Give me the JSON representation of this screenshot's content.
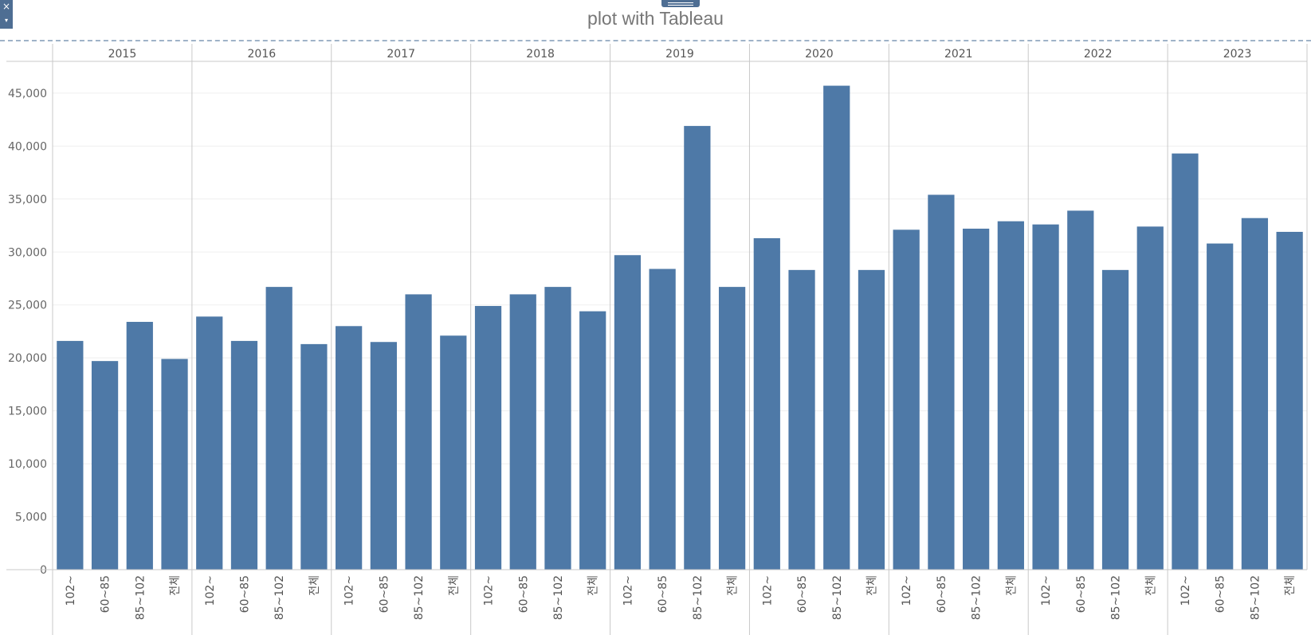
{
  "title": "plot with Tableau",
  "controls": {
    "close_icon": "×",
    "menu_icon": "▾"
  },
  "chart_data": {
    "type": "bar",
    "title": "plot with Tableau",
    "xlabel": "",
    "ylabel": "",
    "ylim": [
      0,
      48000
    ],
    "yticks": [
      0,
      5000,
      10000,
      15000,
      20000,
      25000,
      30000,
      35000,
      40000,
      45000
    ],
    "ytick_labels": [
      "0",
      "5,000",
      "10,000",
      "15,000",
      "20,000",
      "25,000",
      "30,000",
      "35,000",
      "40,000",
      "45,000"
    ],
    "categories": [
      "102~",
      "60~85",
      "85~102",
      "전체"
    ],
    "groups": [
      {
        "year": "2015",
        "values": [
          21600,
          19700,
          23400,
          19900
        ]
      },
      {
        "year": "2016",
        "values": [
          23900,
          21600,
          26700,
          21300
        ]
      },
      {
        "year": "2017",
        "values": [
          23000,
          21500,
          26000,
          22100
        ]
      },
      {
        "year": "2018",
        "values": [
          24900,
          26000,
          26700,
          24400
        ]
      },
      {
        "year": "2019",
        "values": [
          29700,
          28400,
          41900,
          26700
        ]
      },
      {
        "year": "2020",
        "values": [
          31300,
          28300,
          45700,
          28300
        ]
      },
      {
        "year": "2021",
        "values": [
          32100,
          35400,
          32200,
          32900
        ]
      },
      {
        "year": "2022",
        "values": [
          32600,
          33900,
          28300,
          32400
        ]
      },
      {
        "year": "2023",
        "values": [
          39300,
          30800,
          33200,
          31900
        ]
      }
    ],
    "bar_color": "#4e79a7",
    "grid": true
  }
}
